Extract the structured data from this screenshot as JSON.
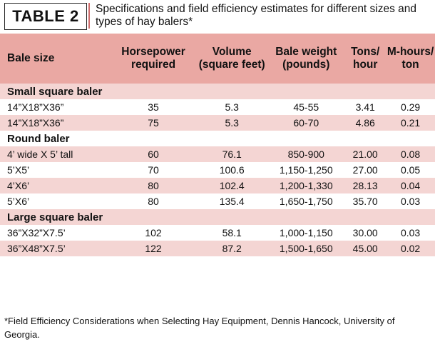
{
  "header": {
    "tag": "TABLE 2",
    "caption": "Specifications and field efficiency estimates for different sizes and types of hay balers*"
  },
  "columns": {
    "bale_size": "Bale size",
    "horsepower": "Horsepower required",
    "volume": "Volume (square feet)",
    "weight": "Bale weight (pounds)",
    "tons": "Tons/ hour",
    "mhours": "M-hours/ ton"
  },
  "groups": [
    {
      "name": "Small square baler",
      "rows": [
        [
          "14”X18”X36”",
          "35",
          "5.3",
          "45-55",
          "3.41",
          "0.29"
        ],
        [
          "14”X18”X36”",
          "75",
          "5.3",
          "60-70",
          "4.86",
          "0.21"
        ]
      ]
    },
    {
      "name": "Round baler",
      "rows": [
        [
          "4’ wide X 5’ tall",
          "60",
          "76.1",
          "850-900",
          "21.00",
          "0.08"
        ],
        [
          "5’X5’",
          "70",
          "100.6",
          "1,150-1,250",
          "27.00",
          "0.05"
        ],
        [
          "4’X6’",
          "80",
          "102.4",
          "1,200-1,330",
          "28.13",
          "0.04"
        ],
        [
          "5’X6’",
          "80",
          "135.4",
          "1,650-1,750",
          "35.70",
          "0.03"
        ]
      ]
    },
    {
      "name": "Large square baler",
      "rows": [
        [
          "36”X32”X7.5’",
          "102",
          "58.1",
          "1,000-1,150",
          "30.00",
          "0.03"
        ],
        [
          "36”X48”X7.5’",
          "122",
          "87.2",
          "1,500-1,650",
          "45.00",
          "0.02"
        ]
      ]
    }
  ],
  "footnote": "*Field Efficiency Considerations when Selecting Hay Equipment, Dennis Hancock, University of Georgia.",
  "colors": {
    "header_bg": "#eaa8a3",
    "stripe": "#f4d5d3",
    "accent": "#cf6d6d"
  }
}
